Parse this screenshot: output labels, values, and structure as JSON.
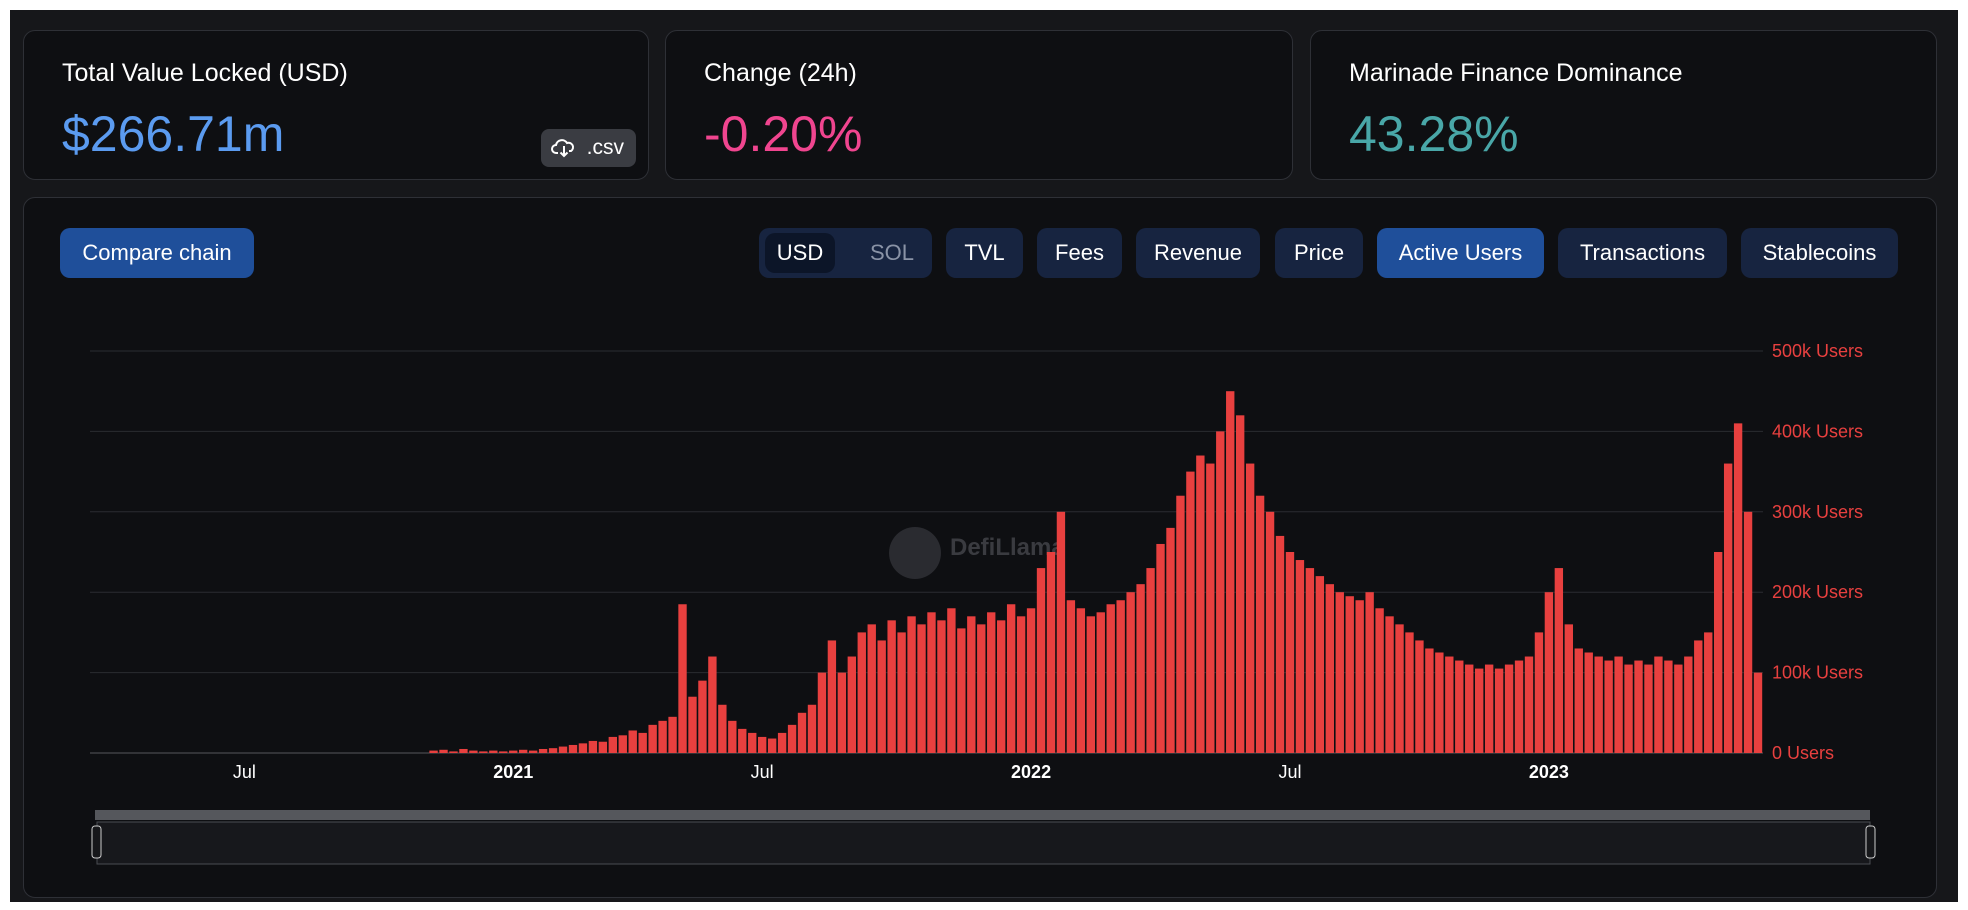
{
  "stats": [
    {
      "label": "Total Value Locked (USD)",
      "value": "$266.71m"
    },
    {
      "label": "Change (24h)",
      "value": "-0.20%"
    },
    {
      "label": "Marinade Finance Dominance",
      "value": "43.28%"
    }
  ],
  "csv_button": ".csv",
  "toolbar": {
    "compare": "Compare chain",
    "currency": [
      "USD",
      "SOL"
    ],
    "metrics": [
      "TVL",
      "Fees",
      "Revenue",
      "Price",
      "Active Users",
      "Transactions",
      "Stablecoins"
    ]
  },
  "watermark": "DefiLlama",
  "chart_data": {
    "type": "bar",
    "color": "#e8403f",
    "grid": true,
    "categories": [
      null,
      null,
      null,
      null,
      null,
      null,
      null,
      null,
      null,
      null,
      null,
      null,
      null,
      null,
      null,
      "Jul",
      null,
      null,
      null,
      null,
      null,
      null,
      null,
      null,
      null,
      null,
      null,
      null,
      null,
      null,
      null,
      null,
      null,
      null,
      null,
      null,
      null,
      null,
      null,
      null,
      null,
      null,
      "2021",
      null,
      null,
      null,
      null,
      null,
      null,
      null,
      null,
      null,
      null,
      null,
      null,
      null,
      null,
      null,
      null,
      null,
      null,
      null,
      null,
      null,
      null,
      null,
      null,
      "Jul",
      null,
      null,
      null,
      null,
      null,
      null,
      null,
      null,
      null,
      null,
      null,
      null,
      null,
      null,
      null,
      null,
      null,
      null,
      null,
      null,
      null,
      null,
      null,
      null,
      null,
      null,
      "2022",
      null,
      null,
      null,
      null,
      null,
      null,
      null,
      null,
      null,
      null,
      null,
      null,
      null,
      null,
      null,
      null,
      null,
      null,
      null,
      null,
      null,
      null,
      null,
      null,
      null,
      "Jul",
      null,
      null,
      null,
      null,
      null,
      null,
      null,
      null,
      null,
      null,
      null,
      null,
      null,
      null,
      null,
      null,
      null,
      null,
      null,
      null,
      null,
      null,
      null,
      null,
      null,
      "2023",
      null,
      null,
      null,
      null,
      null,
      null,
      null,
      null,
      null,
      null,
      null,
      null,
      null,
      null,
      null,
      null,
      null,
      null,
      null,
      null,
      null
    ],
    "values": [
      null,
      null,
      null,
      null,
      null,
      null,
      null,
      null,
      null,
      null,
      null,
      null,
      null,
      null,
      null,
      null,
      null,
      null,
      null,
      null,
      null,
      null,
      null,
      null,
      null,
      null,
      null,
      null,
      null,
      null,
      null,
      null,
      null,
      null,
      3000,
      4000,
      2000,
      5000,
      3000,
      2000,
      3000,
      2000,
      3000,
      4000,
      3000,
      5000,
      6000,
      8000,
      10000,
      12000,
      15000,
      14000,
      20000,
      22000,
      28000,
      25000,
      35000,
      40000,
      45000,
      185000,
      70000,
      90000,
      120000,
      60000,
      40000,
      30000,
      25000,
      20000,
      18000,
      25000,
      35000,
      50000,
      60000,
      100000,
      140000,
      100000,
      120000,
      150000,
      160000,
      140000,
      165000,
      150000,
      170000,
      160000,
      175000,
      165000,
      180000,
      155000,
      170000,
      160000,
      175000,
      165000,
      185000,
      170000,
      180000,
      230000,
      250000,
      300000,
      190000,
      180000,
      170000,
      175000,
      185000,
      190000,
      200000,
      210000,
      230000,
      260000,
      280000,
      320000,
      350000,
      370000,
      360000,
      400000,
      450000,
      420000,
      360000,
      320000,
      300000,
      270000,
      250000,
      240000,
      230000,
      220000,
      210000,
      200000,
      195000,
      190000,
      200000,
      180000,
      170000,
      160000,
      150000,
      140000,
      130000,
      125000,
      120000,
      115000,
      110000,
      105000,
      110000,
      105000,
      110000,
      115000,
      120000,
      150000,
      200000,
      230000,
      160000,
      130000,
      125000,
      120000,
      115000,
      120000,
      110000,
      115000,
      110000,
      120000,
      115000,
      110000,
      120000,
      140000,
      150000,
      250000,
      360000,
      410000,
      300000,
      100000
    ],
    "ylim": [
      0,
      500000
    ],
    "yticks": [
      {
        "value": 0,
        "label": "0 Users"
      },
      {
        "value": 100000,
        "label": "100k Users"
      },
      {
        "value": 200000,
        "label": "200k Users"
      },
      {
        "value": 300000,
        "label": "300k Users"
      },
      {
        "value": 400000,
        "label": "400k Users"
      },
      {
        "value": 500000,
        "label": "500k Users"
      }
    ]
  }
}
